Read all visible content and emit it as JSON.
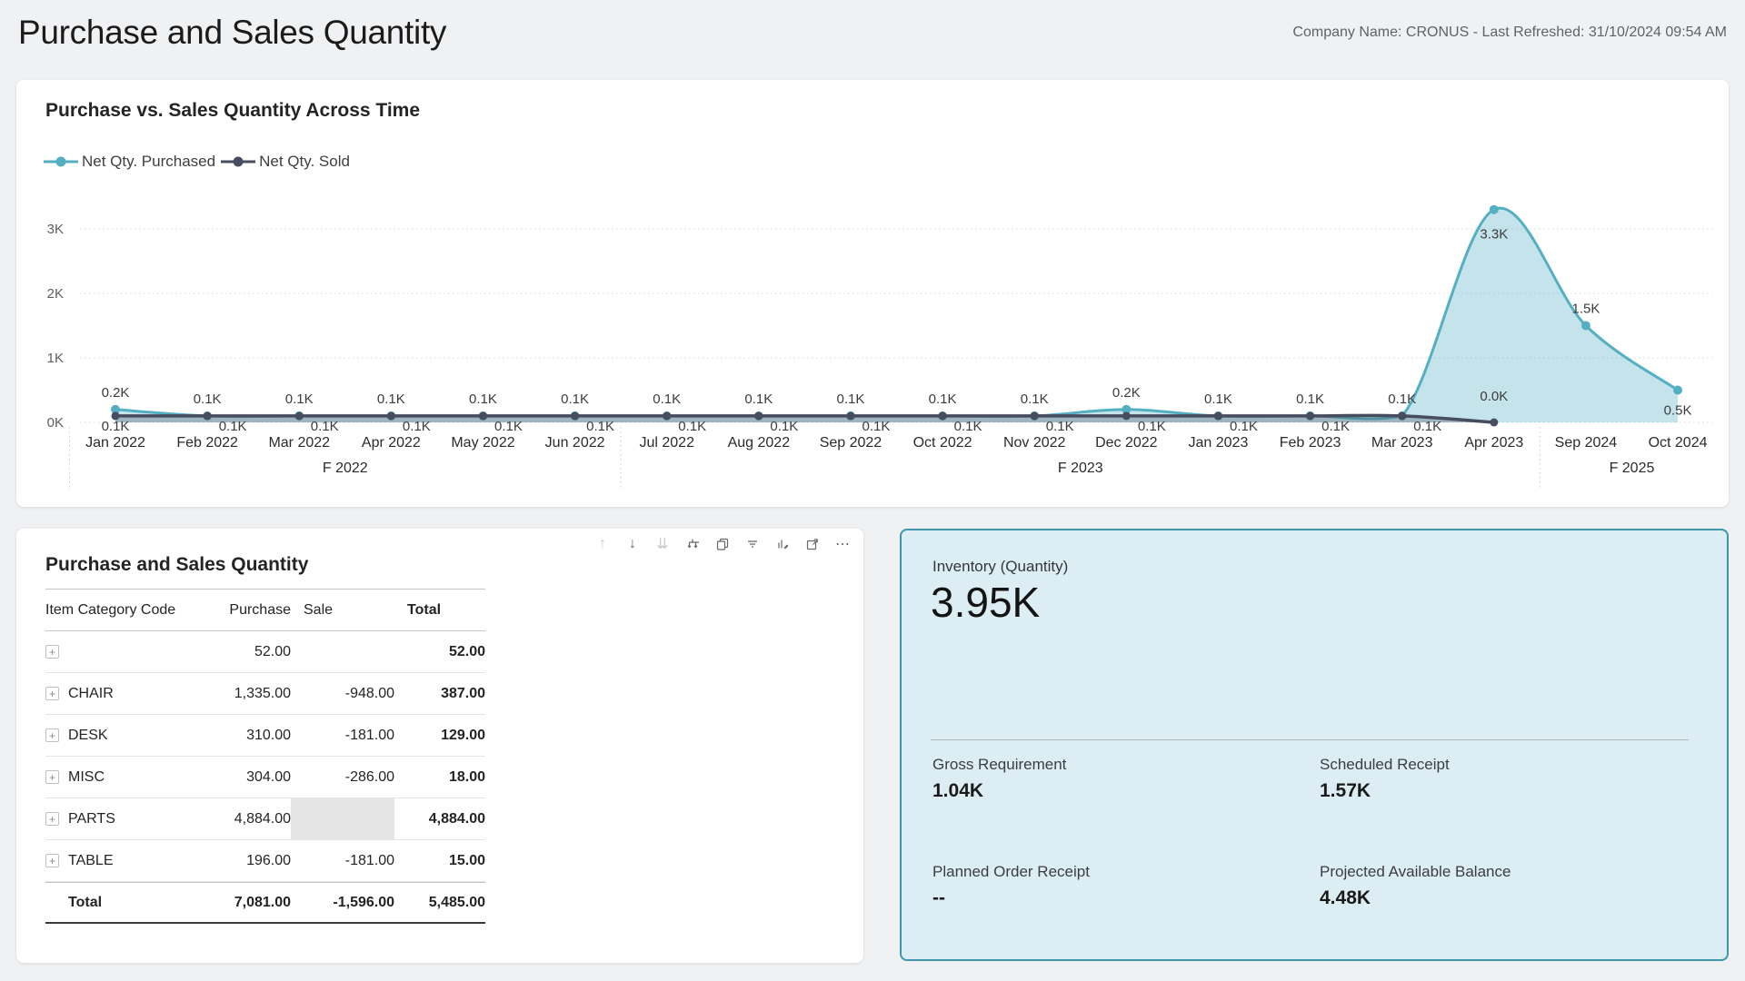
{
  "page": {
    "title": "Purchase and Sales Quantity",
    "company_info": "Company Name: CRONUS - Last Refreshed: 31/10/2024 09:54 AM"
  },
  "chart": {
    "title": "Purchase vs. Sales Quantity Across Time",
    "legend": [
      {
        "label": "Net Qty. Purchased",
        "color": "#55AFC2"
      },
      {
        "label": "Net Qty. Sold",
        "color": "#474C5E"
      }
    ]
  },
  "chart_data": {
    "type": "area",
    "title": "Purchase vs. Sales Quantity Across Time",
    "x": [
      "Jan 2022",
      "Feb 2022",
      "Mar 2022",
      "Apr 2022",
      "May 2022",
      "Jun 2022",
      "Jul 2022",
      "Aug 2022",
      "Sep 2022",
      "Oct 2022",
      "Nov 2022",
      "Dec 2022",
      "Jan 2023",
      "Feb 2023",
      "Mar 2023",
      "Apr 2023",
      "Sep 2024",
      "Oct 2024"
    ],
    "fiscal_labels": [
      {
        "label": "F 2022",
        "index": 2.5
      },
      {
        "label": "F 2023",
        "index": 10.5
      },
      {
        "label": "F 2025",
        "index": 16.5
      }
    ],
    "divider_indices": [
      -0.5,
      5.5,
      15.5
    ],
    "y_ticks": [
      "0K",
      "1K",
      "2K",
      "3K"
    ],
    "ylim": [
      0,
      3300
    ],
    "grid": true,
    "legend_position": "top-left",
    "series": [
      {
        "name": "Net Qty. Purchased",
        "color": "#55AFC2",
        "fill": "rgba(85,175,194,0.35)",
        "values_k": [
          0.2,
          0.1,
          0.1,
          0.1,
          0.1,
          0.1,
          0.1,
          0.1,
          0.1,
          0.1,
          0.1,
          0.2,
          0.1,
          0.1,
          0.1,
          3.3,
          1.5,
          0.5
        ],
        "labels": [
          "0.2K",
          "0.1K",
          "0.1K",
          "0.1K",
          "0.1K",
          "0.1K",
          "0.1K",
          "0.1K",
          "0.1K",
          "0.1K",
          "0.1K",
          "0.2K",
          "0.1K",
          "0.1K",
          "0.1K",
          "3.3K",
          "1.5K",
          "0.5K"
        ]
      },
      {
        "name": "Net Qty. Sold",
        "color": "#474C5E",
        "fill": "rgba(71,76,94,0.30)",
        "values_k": [
          0.1,
          0.1,
          0.1,
          0.1,
          0.1,
          0.1,
          0.1,
          0.1,
          0.1,
          0.1,
          0.1,
          0.1,
          0.1,
          0.1,
          0.1,
          0.0
        ],
        "labels": [
          "0.1K",
          "0.1K",
          "0.1K",
          "0.1K",
          "0.1K",
          "0.1K",
          "0.1K",
          "0.1K",
          "0.1K",
          "0.1K",
          "0.1K",
          "0.1K",
          "0.1K",
          "0.1K",
          "0.1K",
          "0.0K"
        ]
      }
    ]
  },
  "table": {
    "title": "Purchase and Sales Quantity",
    "columns": [
      "Item Category Code",
      "Purchase",
      "Sale",
      "Total"
    ],
    "rows": [
      {
        "category": "",
        "purchase": "52.00",
        "sale": "",
        "total": "52.00",
        "sale_shaded": false
      },
      {
        "category": "CHAIR",
        "purchase": "1,335.00",
        "sale": "-948.00",
        "total": "387.00",
        "sale_shaded": false
      },
      {
        "category": "DESK",
        "purchase": "310.00",
        "sale": "-181.00",
        "total": "129.00",
        "sale_shaded": false
      },
      {
        "category": "MISC",
        "purchase": "304.00",
        "sale": "-286.00",
        "total": "18.00",
        "sale_shaded": false
      },
      {
        "category": "PARTS",
        "purchase": "4,884.00",
        "sale": "",
        "total": "4,884.00",
        "sale_shaded": true
      },
      {
        "category": "TABLE",
        "purchase": "196.00",
        "sale": "-181.00",
        "total": "15.00",
        "sale_shaded": false
      }
    ],
    "total_row": {
      "label": "Total",
      "purchase": "7,081.00",
      "sale": "-1,596.00",
      "total": "5,485.00"
    },
    "toolbar_icons": [
      "drill-up",
      "drill-down",
      "go-to-next-level",
      "expand-all",
      "copy",
      "filter",
      "personalize",
      "focus-mode",
      "more-options"
    ],
    "expand_glyph": "+"
  },
  "kpi": {
    "title": "Inventory (Quantity)",
    "value": "3.95K",
    "metrics": [
      {
        "label": "Gross Requirement",
        "value": "1.04K"
      },
      {
        "label": "Scheduled Receipt",
        "value": "1.57K"
      },
      {
        "label": "Planned Order Receipt",
        "value": "--"
      },
      {
        "label": "Projected Available Balance",
        "value": "4.48K"
      }
    ],
    "accent_color": "#3D97A8",
    "background_color": "#DCEDF3"
  }
}
